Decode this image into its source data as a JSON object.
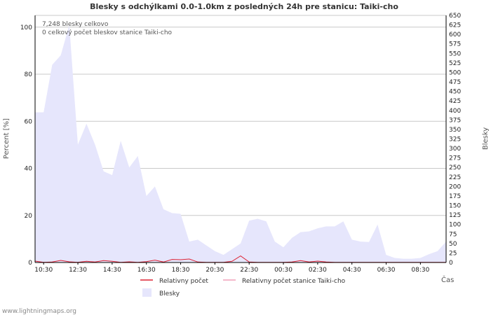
{
  "chart_data": {
    "type": "area",
    "title": "Blesky s odchýlkami 0.0-1.0km z posledných 24h pre stanicu: Taiki-cho",
    "annotations": [
      "7,248 blesky celkovo",
      "0 celkový počet bleskov stanice Taiki-cho"
    ],
    "xlabel": "Čas",
    "ylabel_left": "Percent   [%]",
    "ylabel_right": "Blesky",
    "ylim_left": [
      0,
      105
    ],
    "ylim_right": [
      0,
      650
    ],
    "yticks_left": [
      "0",
      "20",
      "40",
      "60",
      "80",
      "100"
    ],
    "yticks_right": [
      "0",
      "25",
      "50",
      "75",
      "100",
      "125",
      "150",
      "175",
      "200",
      "225",
      "250",
      "275",
      "300",
      "325",
      "350",
      "375",
      "400",
      "425",
      "450",
      "475",
      "500",
      "525",
      "550",
      "575",
      "600",
      "625",
      "650"
    ],
    "xticks": [
      "10:30",
      "12:30",
      "14:30",
      "16:30",
      "18:30",
      "20:30",
      "22:30",
      "00:30",
      "02:30",
      "04:30",
      "06:30",
      "08:30"
    ],
    "x": [
      "10:00",
      "10:30",
      "11:00",
      "11:30",
      "12:00",
      "12:30",
      "13:00",
      "13:30",
      "14:00",
      "14:30",
      "15:00",
      "15:30",
      "16:00",
      "16:30",
      "17:00",
      "17:30",
      "18:00",
      "18:30",
      "19:00",
      "19:30",
      "20:00",
      "20:30",
      "21:00",
      "21:30",
      "22:00",
      "22:30",
      "23:00",
      "23:30",
      "00:00",
      "00:30",
      "01:00",
      "01:30",
      "02:00",
      "02:30",
      "03:00",
      "03:30",
      "04:00",
      "04:30",
      "05:00",
      "05:30",
      "06:00",
      "06:30",
      "07:00",
      "07:30",
      "08:00",
      "08:30",
      "09:00",
      "09:30",
      "10:00"
    ],
    "series": [
      {
        "name": "Blesky",
        "axis": "right",
        "color": "#e6e6fc",
        "values": [
          395,
          395,
          520,
          545,
          625,
          310,
          365,
          310,
          240,
          230,
          320,
          250,
          280,
          175,
          200,
          140,
          130,
          128,
          55,
          60,
          45,
          30,
          20,
          35,
          50,
          110,
          115,
          108,
          55,
          40,
          65,
          80,
          82,
          90,
          95,
          95,
          108,
          60,
          55,
          54,
          100,
          20,
          12,
          10,
          10,
          12,
          22,
          30,
          55
        ]
      },
      {
        "name": "Relativny počet",
        "axis": "left",
        "color": "#dd2233",
        "values": [
          0.6,
          0.1,
          0.2,
          0.9,
          0.3,
          0.1,
          0.5,
          0.2,
          0.8,
          0.5,
          0.1,
          0.3,
          0.1,
          0.4,
          1.0,
          0.2,
          1.3,
          1.2,
          1.5,
          0.2,
          0.1,
          0.1,
          0.1,
          0.5,
          2.8,
          0.2,
          0.1,
          0.1,
          0.1,
          0.1,
          0.2,
          0.8,
          0.2,
          0.6,
          0.2,
          0.1,
          0.1,
          0.1,
          0.1,
          0.1,
          0.1,
          0.1,
          0.1,
          0.1,
          0.1,
          0.1,
          0.1,
          0.1,
          0.1
        ]
      },
      {
        "name": "Relativny počet stanice Taiki-cho",
        "axis": "left",
        "color": "#f0a0b8",
        "values": [
          0,
          0,
          0,
          0,
          0,
          0,
          0,
          0,
          0,
          0,
          0,
          0,
          0,
          0,
          0,
          0,
          0,
          0,
          0,
          0,
          0,
          0,
          0,
          0,
          0,
          0,
          0,
          0,
          0,
          0,
          0,
          0,
          0,
          0,
          0,
          0,
          0,
          0,
          0,
          0,
          0,
          0,
          0,
          0,
          0,
          0,
          0,
          0,
          0
        ]
      }
    ],
    "legend": [
      "Relativny počet",
      "Relativny počet stanice Taiki-cho",
      "Blesky"
    ]
  },
  "footer": "www.lightningmaps.org"
}
